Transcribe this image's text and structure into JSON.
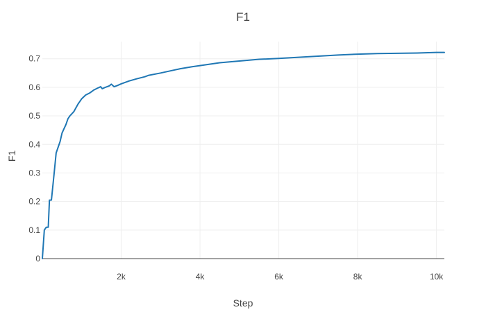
{
  "chart_data": {
    "type": "line",
    "title": "F1",
    "xlabel": "Step",
    "ylabel": "F1",
    "xlim": [
      0,
      10200
    ],
    "ylim": [
      0,
      0.76
    ],
    "x_ticks": [
      2000,
      4000,
      6000,
      8000,
      10000
    ],
    "x_tick_labels": [
      "2k",
      "4k",
      "6k",
      "8k",
      "10k"
    ],
    "y_ticks": [
      0,
      0.1,
      0.2,
      0.3,
      0.4,
      0.5,
      0.6,
      0.7
    ],
    "y_tick_labels": [
      "0",
      "0.1",
      "0.2",
      "0.3",
      "0.4",
      "0.5",
      "0.6",
      "0.7"
    ],
    "grid": true,
    "series": [
      {
        "color": "#1f77b4",
        "points": [
          [
            0,
            0.0
          ],
          [
            50,
            0.1
          ],
          [
            100,
            0.11
          ],
          [
            150,
            0.11
          ],
          [
            180,
            0.205
          ],
          [
            230,
            0.205
          ],
          [
            300,
            0.3
          ],
          [
            350,
            0.37
          ],
          [
            400,
            0.39
          ],
          [
            450,
            0.41
          ],
          [
            500,
            0.44
          ],
          [
            600,
            0.47
          ],
          [
            650,
            0.49
          ],
          [
            700,
            0.5
          ],
          [
            800,
            0.515
          ],
          [
            900,
            0.54
          ],
          [
            1000,
            0.56
          ],
          [
            1100,
            0.573
          ],
          [
            1200,
            0.58
          ],
          [
            1300,
            0.59
          ],
          [
            1400,
            0.597
          ],
          [
            1480,
            0.602
          ],
          [
            1520,
            0.595
          ],
          [
            1600,
            0.6
          ],
          [
            1700,
            0.605
          ],
          [
            1750,
            0.611
          ],
          [
            1820,
            0.602
          ],
          [
            1900,
            0.606
          ],
          [
            2000,
            0.612
          ],
          [
            2200,
            0.622
          ],
          [
            2400,
            0.63
          ],
          [
            2600,
            0.637
          ],
          [
            2700,
            0.642
          ],
          [
            3000,
            0.65
          ],
          [
            3200,
            0.656
          ],
          [
            3500,
            0.665
          ],
          [
            3800,
            0.672
          ],
          [
            4000,
            0.676
          ],
          [
            4500,
            0.686
          ],
          [
            5000,
            0.692
          ],
          [
            5500,
            0.698
          ],
          [
            6000,
            0.701
          ],
          [
            6500,
            0.705
          ],
          [
            7000,
            0.709
          ],
          [
            7500,
            0.713
          ],
          [
            8000,
            0.716
          ],
          [
            8500,
            0.718
          ],
          [
            9000,
            0.719
          ],
          [
            9500,
            0.72
          ],
          [
            10000,
            0.722
          ],
          [
            10200,
            0.722
          ]
        ]
      }
    ]
  }
}
